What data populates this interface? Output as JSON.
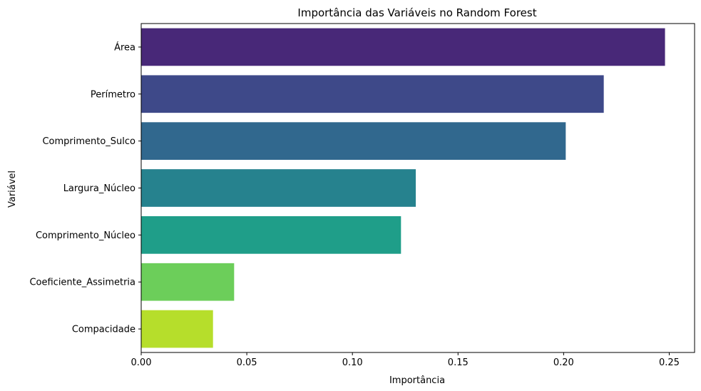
{
  "chart_data": {
    "type": "bar",
    "orientation": "horizontal",
    "title": "Importância das Variáveis no Random Forest",
    "xlabel": "Importância",
    "ylabel": "Variável",
    "xlim": [
      0,
      0.262
    ],
    "xticks": [
      0.0,
      0.05,
      0.1,
      0.15,
      0.2,
      0.25
    ],
    "xtick_labels": [
      "0.00",
      "0.05",
      "0.10",
      "0.15",
      "0.20",
      "0.25"
    ],
    "grid": false,
    "categories": [
      "Área",
      "Perímetro",
      "Comprimento_Sulco",
      "Largura_Núcleo",
      "Comprimento_Núcleo",
      "Coeficiente_Assimetria",
      "Compacidade"
    ],
    "values": [
      0.248,
      0.219,
      0.201,
      0.13,
      0.123,
      0.044,
      0.034
    ],
    "colors": [
      "#482878",
      "#3e4989",
      "#31688e",
      "#26828e",
      "#1f9e89",
      "#6cce5a",
      "#b6de2b"
    ]
  }
}
